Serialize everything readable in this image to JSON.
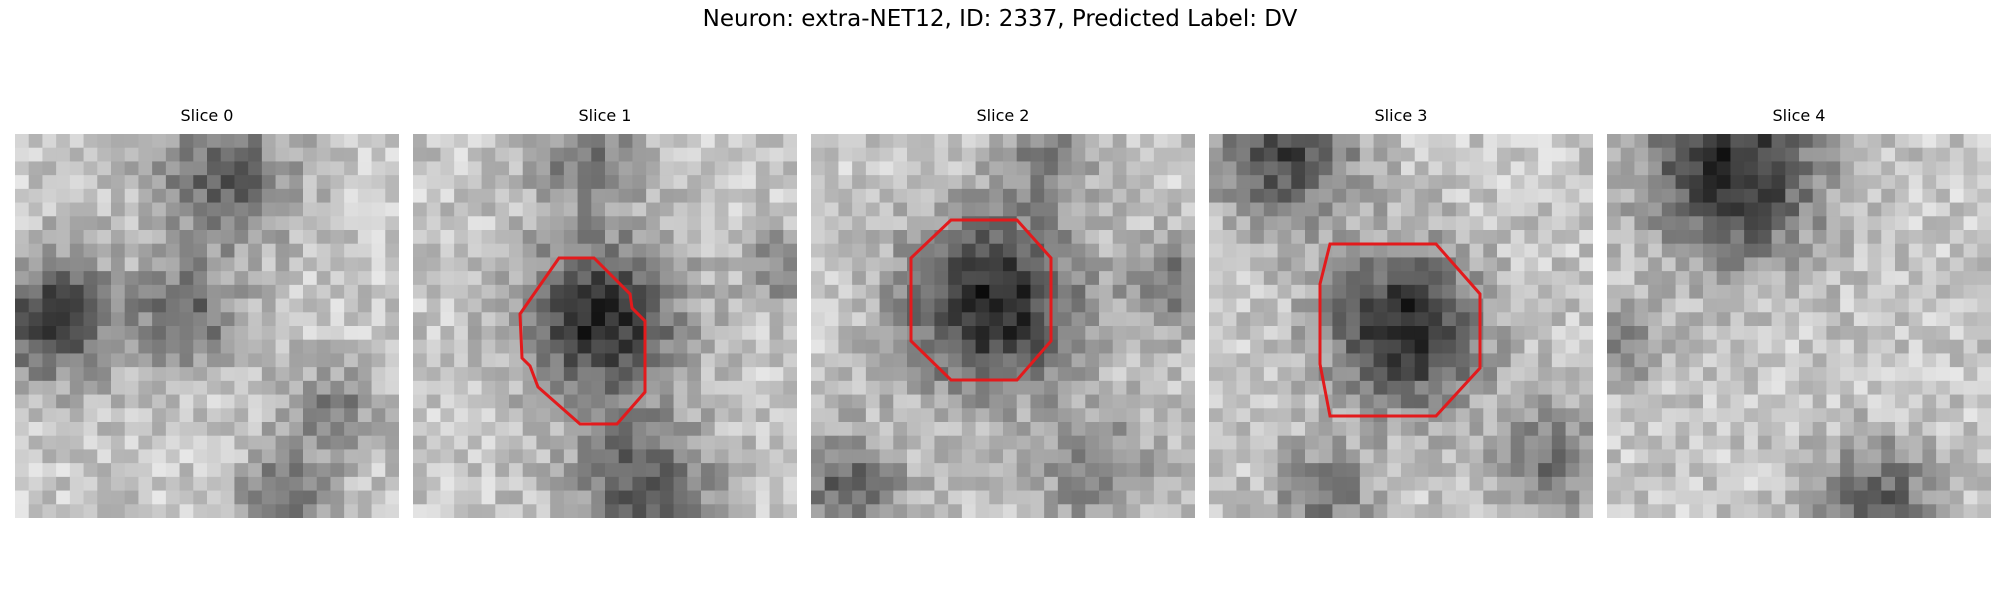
{
  "figure": {
    "title": "Neuron: extra-NET12, ID: 2337, Predicted Label: DV"
  },
  "panels": [
    {
      "title": "Slice 0",
      "contour": false
    },
    {
      "title": "Slice 1",
      "contour": true
    },
    {
      "title": "Slice 2",
      "contour": true
    },
    {
      "title": "Slice 3",
      "contour": true
    },
    {
      "title": "Slice 4",
      "contour": false
    }
  ],
  "colors": {
    "contour": "#e31a1c"
  }
}
